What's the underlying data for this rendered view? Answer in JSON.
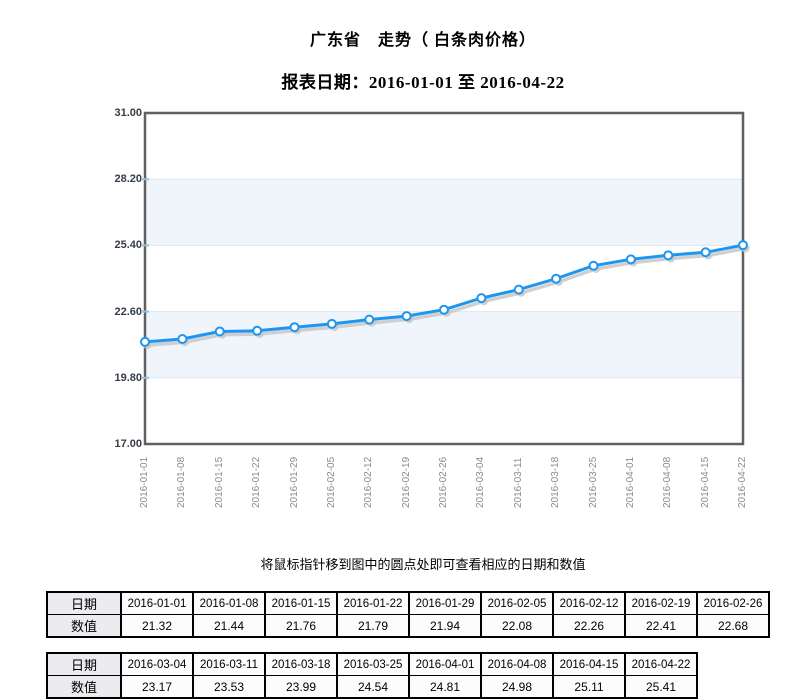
{
  "header": {
    "title": "广东省　走势（ 白条肉价格）",
    "subtitle": "报表日期：2016-01-01 至 2016-04-22"
  },
  "note": "将鼠标指针移到图中的圆点处即可查看相应的日期和数值",
  "chart_data": {
    "type": "line",
    "title": "广东省 走势（白条肉价格）",
    "x": [
      "2016-01-01",
      "2016-01-08",
      "2016-01-15",
      "2016-01-22",
      "2016-01-29",
      "2016-02-05",
      "2016-02-12",
      "2016-02-19",
      "2016-02-26",
      "2016-03-04",
      "2016-03-11",
      "2016-03-18",
      "2016-03-25",
      "2016-04-01",
      "2016-04-08",
      "2016-04-15",
      "2016-04-22"
    ],
    "series": [
      {
        "name": "白条肉价格",
        "values": [
          21.32,
          21.44,
          21.76,
          21.79,
          21.94,
          22.08,
          22.26,
          22.41,
          22.68,
          23.17,
          23.53,
          23.99,
          24.54,
          24.81,
          24.98,
          25.11,
          25.41
        ]
      }
    ],
    "ylim": [
      17.0,
      31.0
    ],
    "y_ticks": [
      "31.00",
      "28.20",
      "25.40",
      "22.60",
      "19.80",
      "17.00"
    ],
    "xlabel": "",
    "ylabel": "",
    "grid": true,
    "legend": "none",
    "colors": {
      "line": "#1e96f0",
      "marker_fill": "#ffffff",
      "shadow": "#c8c8c8",
      "band": "#f0f5fb",
      "gridline": "#dce7f3",
      "tick": "#8fc3e8",
      "plot_border": "#606060"
    }
  },
  "tables": [
    {
      "row_labels": [
        "日期",
        "数值"
      ],
      "dates": [
        "2016-01-01",
        "2016-01-08",
        "2016-01-15",
        "2016-01-22",
        "2016-01-29",
        "2016-02-05",
        "2016-02-12",
        "2016-02-19",
        "2016-02-26"
      ],
      "values": [
        "21.32",
        "21.44",
        "21.76",
        "21.79",
        "21.94",
        "22.08",
        "22.26",
        "22.41",
        "22.68"
      ]
    },
    {
      "row_labels": [
        "日期",
        "数值"
      ],
      "dates": [
        "2016-03-04",
        "2016-03-11",
        "2016-03-18",
        "2016-03-25",
        "2016-04-01",
        "2016-04-08",
        "2016-04-15",
        "2016-04-22"
      ],
      "values": [
        "23.17",
        "23.53",
        "23.99",
        "24.54",
        "24.81",
        "24.98",
        "25.11",
        "25.41"
      ]
    }
  ]
}
